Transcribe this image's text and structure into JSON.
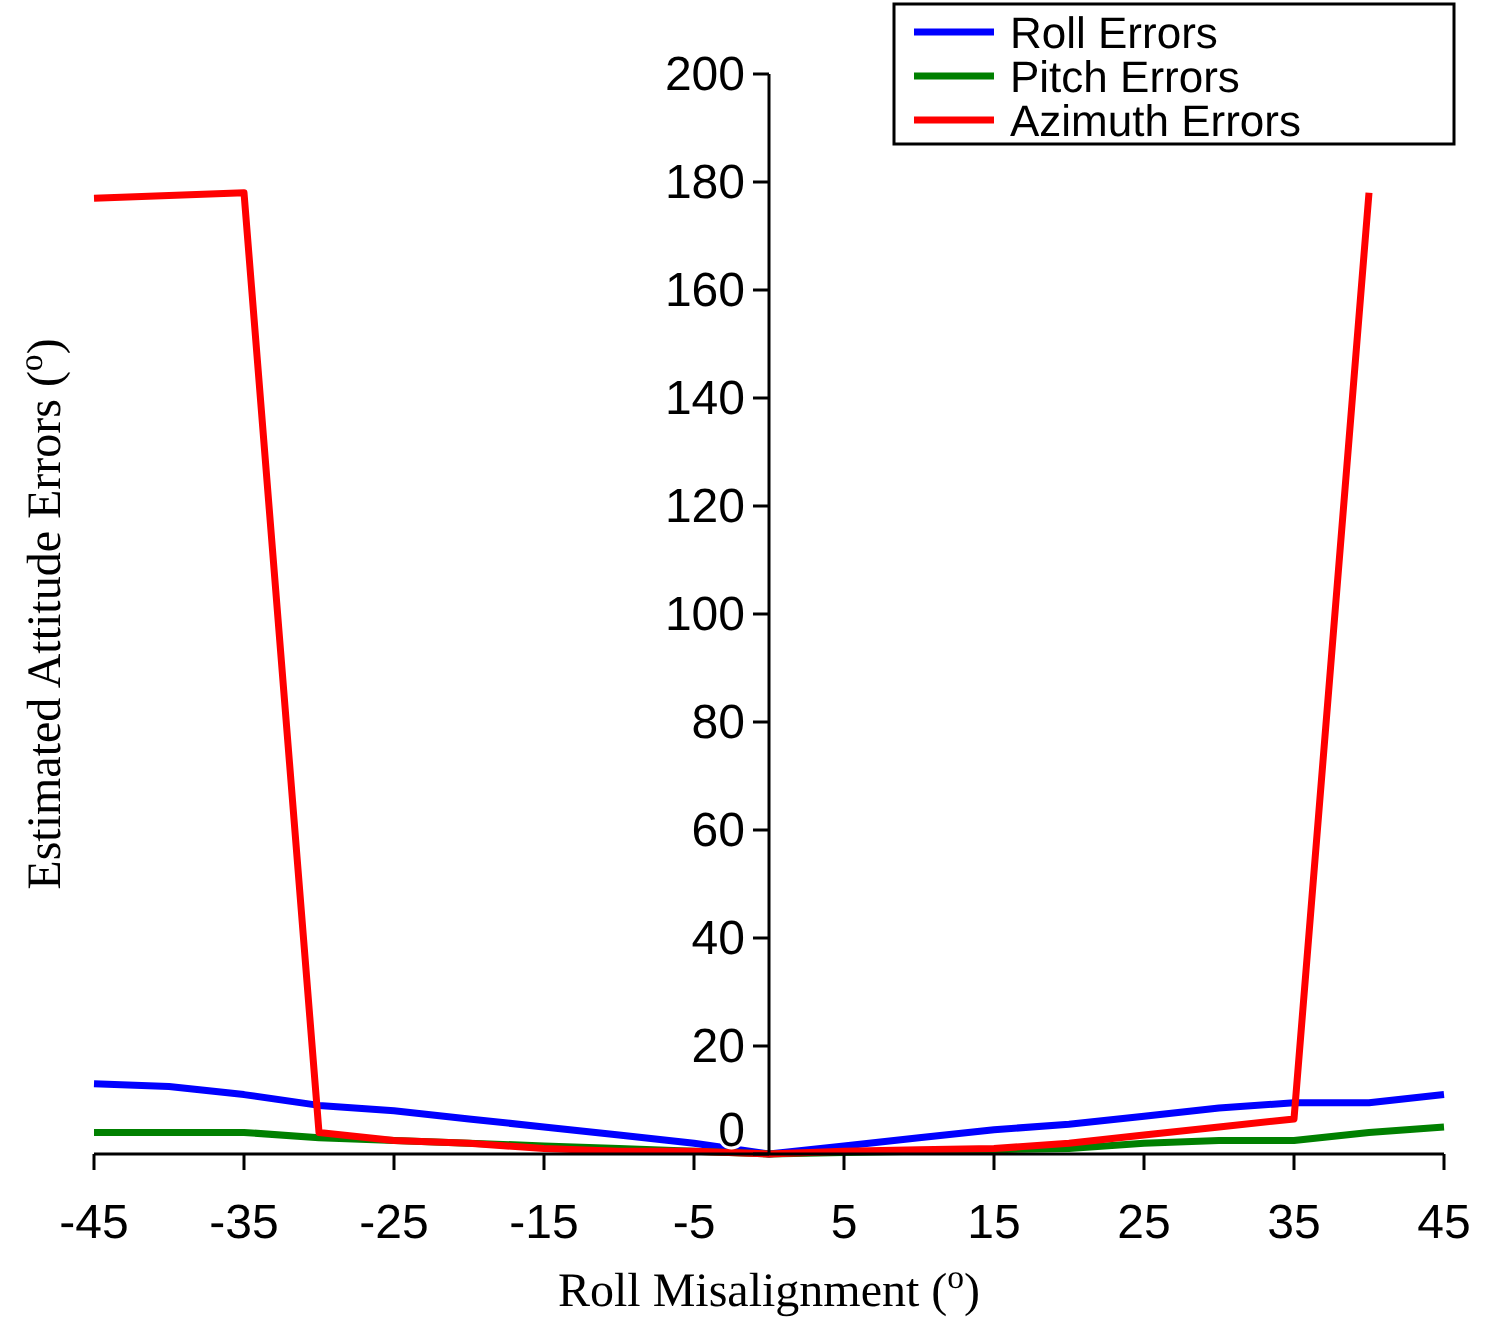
{
  "chart_data": {
    "type": "line",
    "xlabel": "Roll Misalignment ($^{o}$)",
    "ylabel": "Estimated Attitude Errors ($^{o}$)",
    "x": [
      -45,
      -40,
      -35,
      -30,
      -25,
      -20,
      -15,
      -10,
      -5,
      0,
      5,
      10,
      15,
      20,
      25,
      30,
      35,
      40,
      45
    ],
    "series": [
      {
        "name": "Roll Errors",
        "color": "#0000ff",
        "values": [
          13,
          12.5,
          11,
          9,
          8,
          6.5,
          5,
          3.5,
          2,
          0,
          1.5,
          3,
          4.5,
          5.5,
          7,
          8.5,
          9.5,
          9.5,
          11
        ]
      },
      {
        "name": "Pitch Errors",
        "color": "#008000",
        "values": [
          4,
          4,
          4,
          3,
          2.5,
          2,
          1.5,
          1,
          0.5,
          0,
          0.3,
          0.5,
          0.8,
          1,
          2,
          2.5,
          2.5,
          4,
          5
        ]
      },
      {
        "name": "Azimuth Errors",
        "color": "#ff0000",
        "values": [
          177,
          177.5,
          178,
          4,
          2.5,
          2,
          1,
          0.5,
          0.5,
          0,
          0.5,
          0.8,
          1,
          2,
          3.5,
          5,
          6.5,
          178,
          null
        ]
      }
    ],
    "xlim": [
      -45,
      45
    ],
    "ylim": [
      0,
      200
    ],
    "xticks": [
      -45,
      -35,
      -25,
      -15,
      -5,
      5,
      15,
      25,
      35,
      45
    ],
    "yticks": [
      0,
      20,
      40,
      60,
      80,
      100,
      120,
      140,
      160,
      180,
      200
    ],
    "grid": false,
    "legend": "top right",
    "marker": "none",
    "line_style": "solid"
  }
}
